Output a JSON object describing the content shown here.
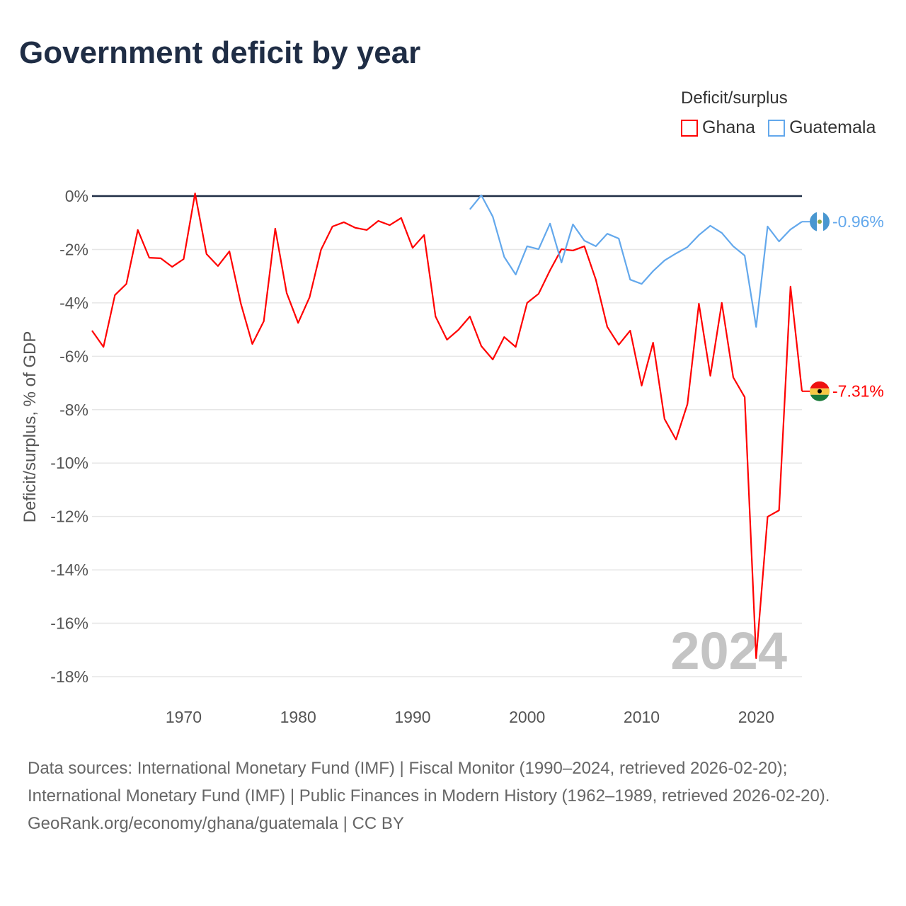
{
  "title": "Government deficit by year",
  "legend": {
    "title": "Deficit/surplus",
    "items": [
      {
        "label": "Ghana",
        "color": "#ff0000"
      },
      {
        "label": "Guatemala",
        "color": "#63a8ec"
      }
    ]
  },
  "year_watermark": "2024",
  "footer": {
    "sources": "Data sources: International Monetary Fund (IMF) | Fiscal Monitor (1990–2024, retrieved 2026-02-20); International Monetary Fund (IMF) | Public Finances in Modern History (1962–1989, retrieved 2026-02-20).",
    "credit": "GeoRank.org/economy/ghana/guatemala | CC BY"
  },
  "chart_data": {
    "type": "line",
    "title": "Government deficit by year",
    "xlabel": "",
    "ylabel": "Deficit/surplus, % of GDP",
    "xlim": [
      1962,
      2024
    ],
    "ylim": [
      -18,
      0
    ],
    "x_ticks": [
      1970,
      1980,
      1990,
      2000,
      2010,
      2020
    ],
    "x_tick_labels": [
      "1970",
      "1980",
      "1990",
      "2000",
      "2010",
      "2020"
    ],
    "y_ticks": [
      0,
      -2,
      -4,
      -6,
      -8,
      -10,
      -12,
      -14,
      -16,
      -18
    ],
    "y_tick_labels": [
      "0%",
      "-2%",
      "-4%",
      "-6%",
      "-8%",
      "-10%",
      "-12%",
      "-14%",
      "-16%",
      "-18%"
    ],
    "grid": true,
    "legend_position": "top-right",
    "series": [
      {
        "name": "Ghana",
        "color": "#ff0000",
        "start_year": 1962,
        "end_label": "-7.31%",
        "values": [
          -5.04,
          -5.65,
          -3.71,
          -3.29,
          -1.27,
          -2.31,
          -2.33,
          -2.65,
          -2.36,
          0.1,
          -2.17,
          -2.62,
          -2.07,
          -4.03,
          -5.54,
          -4.69,
          -1.22,
          -3.63,
          -4.75,
          -3.79,
          -2.01,
          -1.14,
          -0.98,
          -1.19,
          -1.27,
          -0.93,
          -1.09,
          -0.82,
          -1.94,
          -1.46,
          -4.51,
          -5.38,
          -5.01,
          -4.51,
          -5.62,
          -6.12,
          -5.28,
          -5.65,
          -4.0,
          -3.66,
          -2.78,
          -1.99,
          -2.04,
          -1.88,
          -3.13,
          -4.9,
          -5.57,
          -5.04,
          -7.1,
          -5.49,
          -8.35,
          -9.12,
          -7.79,
          -4.03,
          -6.73,
          -4.0,
          -6.79,
          -7.53,
          -17.31,
          -12.01,
          -11.77,
          -3.39,
          -7.31
        ]
      },
      {
        "name": "Guatemala",
        "color": "#63a8ec",
        "start_year": 1995,
        "end_label": "-0.96%",
        "values": [
          -0.5,
          0.03,
          -0.77,
          -2.28,
          -2.94,
          -1.88,
          -1.99,
          -1.03,
          -2.49,
          -1.06,
          -1.67,
          -1.88,
          -1.41,
          -1.59,
          -3.13,
          -3.29,
          -2.81,
          -2.41,
          -2.15,
          -1.91,
          -1.46,
          -1.11,
          -1.38,
          -1.88,
          -2.23,
          -4.9,
          -1.14,
          -1.7,
          -1.25,
          -0.96
        ]
      }
    ]
  }
}
